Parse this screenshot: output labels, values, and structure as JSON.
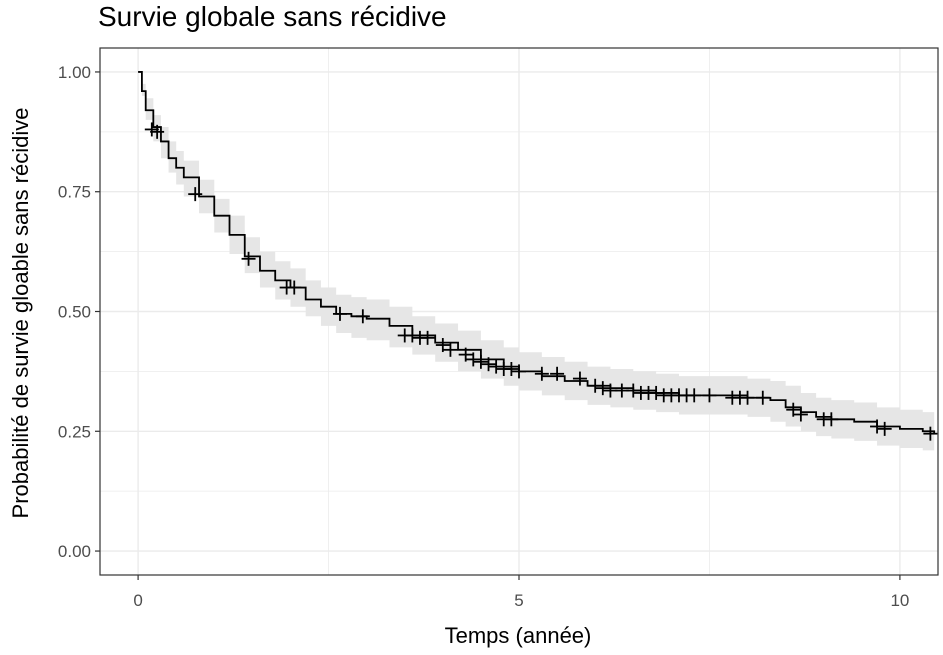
{
  "chart_data": {
    "type": "line",
    "title": "Survie globale sans récidive",
    "xlabel": "Temps (année)",
    "ylabel": "Probabilité de survie gloable sans récidive",
    "xlim": [
      -0.5,
      10.5
    ],
    "ylim": [
      -0.05,
      1.05
    ],
    "x_ticks": [
      0,
      5,
      10
    ],
    "x_tick_labels": [
      "0",
      "5",
      "10"
    ],
    "y_ticks": [
      0,
      0.25,
      0.5,
      0.75,
      1.0
    ],
    "y_tick_labels": [
      "0.00",
      "0.25",
      "0.50",
      "0.75",
      "1.00"
    ],
    "grid": true,
    "legend": "none",
    "colors": {
      "line": "#000000",
      "band": "#e6e6e6",
      "grid": "#ebebeb",
      "panel_border": "#333333"
    },
    "series": [
      {
        "x": [
          0,
          0.05,
          0.1,
          0.2,
          0.3,
          0.4,
          0.5,
          0.6,
          0.8,
          1.0,
          1.2,
          1.4,
          1.6,
          1.8,
          2.0,
          2.2,
          2.4,
          2.6,
          2.8,
          3.0,
          3.3,
          3.6,
          3.9,
          4.2,
          4.5,
          4.8,
          5.0,
          5.3,
          5.6,
          5.9,
          6.2,
          6.5,
          6.8,
          7.1,
          7.4,
          7.7,
          8.0,
          8.3,
          8.5,
          8.7,
          8.9,
          9.1,
          9.4,
          9.7,
          10.0,
          10.3,
          10.45
        ],
        "y": [
          1.0,
          0.96,
          0.92,
          0.885,
          0.855,
          0.82,
          0.8,
          0.78,
          0.74,
          0.7,
          0.66,
          0.615,
          0.585,
          0.565,
          0.55,
          0.525,
          0.51,
          0.495,
          0.49,
          0.485,
          0.47,
          0.45,
          0.435,
          0.42,
          0.4,
          0.385,
          0.375,
          0.365,
          0.355,
          0.345,
          0.34,
          0.335,
          0.33,
          0.325,
          0.325,
          0.325,
          0.32,
          0.315,
          0.3,
          0.29,
          0.28,
          0.275,
          0.27,
          0.26,
          0.255,
          0.25,
          0.245
        ],
        "lower": [
          1.0,
          0.95,
          0.9,
          0.855,
          0.82,
          0.79,
          0.765,
          0.74,
          0.705,
          0.665,
          0.62,
          0.58,
          0.55,
          0.525,
          0.51,
          0.49,
          0.47,
          0.455,
          0.445,
          0.44,
          0.425,
          0.41,
          0.395,
          0.375,
          0.36,
          0.345,
          0.335,
          0.325,
          0.315,
          0.305,
          0.3,
          0.295,
          0.29,
          0.285,
          0.285,
          0.285,
          0.28,
          0.27,
          0.26,
          0.25,
          0.24,
          0.235,
          0.23,
          0.22,
          0.215,
          0.21,
          0.205
        ],
        "upper": [
          1.0,
          0.975,
          0.945,
          0.91,
          0.885,
          0.855,
          0.835,
          0.815,
          0.775,
          0.735,
          0.7,
          0.655,
          0.625,
          0.605,
          0.59,
          0.565,
          0.55,
          0.535,
          0.53,
          0.525,
          0.51,
          0.49,
          0.475,
          0.46,
          0.44,
          0.425,
          0.415,
          0.405,
          0.395,
          0.385,
          0.38,
          0.375,
          0.37,
          0.365,
          0.365,
          0.365,
          0.36,
          0.355,
          0.345,
          0.33,
          0.32,
          0.315,
          0.31,
          0.3,
          0.295,
          0.29,
          0.285
        ]
      }
    ],
    "censor_marks": {
      "x": [
        0.18,
        0.25,
        0.75,
        1.45,
        1.95,
        2.05,
        2.65,
        2.95,
        3.5,
        3.6,
        3.7,
        3.8,
        4.0,
        4.1,
        4.3,
        4.4,
        4.5,
        4.6,
        4.7,
        4.8,
        4.9,
        5.0,
        5.3,
        5.5,
        5.8,
        6.0,
        6.1,
        6.2,
        6.35,
        6.5,
        6.6,
        6.7,
        6.8,
        6.9,
        7.0,
        7.1,
        7.2,
        7.3,
        7.5,
        7.8,
        7.9,
        8.0,
        8.2,
        8.6,
        8.7,
        9.0,
        9.1,
        9.7,
        9.8,
        10.4
      ],
      "y": [
        0.88,
        0.875,
        0.745,
        0.61,
        0.55,
        0.55,
        0.495,
        0.49,
        0.45,
        0.45,
        0.445,
        0.445,
        0.43,
        0.42,
        0.41,
        0.4,
        0.395,
        0.39,
        0.385,
        0.38,
        0.38,
        0.375,
        0.37,
        0.37,
        0.36,
        0.345,
        0.34,
        0.335,
        0.335,
        0.335,
        0.33,
        0.33,
        0.33,
        0.325,
        0.325,
        0.325,
        0.325,
        0.325,
        0.325,
        0.32,
        0.32,
        0.32,
        0.32,
        0.295,
        0.285,
        0.275,
        0.275,
        0.26,
        0.255,
        0.245
      ]
    }
  }
}
